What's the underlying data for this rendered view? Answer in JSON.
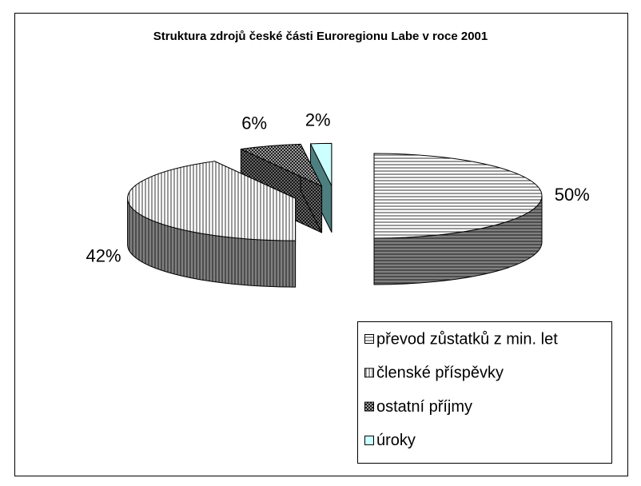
{
  "chart_data": {
    "type": "pie3d",
    "title": "Struktura zdrojů české části Euroregionu Labe v roce 2001",
    "categories": [
      "převod zůstatků z min. let",
      "členské příspěvky",
      "ostatní příjmy",
      "úroky"
    ],
    "values": [
      50,
      42,
      6,
      2
    ],
    "value_labels": [
      "50%",
      "42%",
      "6%",
      "2%"
    ],
    "colors": [
      "#ffffff",
      "#ffffff",
      "#c0c0c0",
      "#ccffff"
    ],
    "legend": "right"
  }
}
